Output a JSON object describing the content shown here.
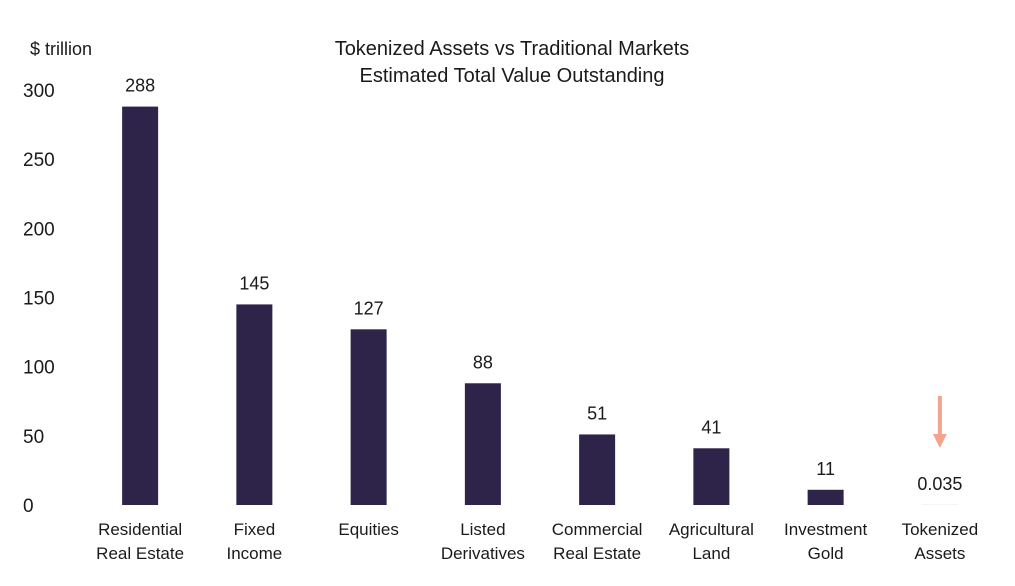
{
  "chart_data": {
    "type": "bar",
    "title": [
      "Tokenized Assets vs Traditional Markets",
      "Estimated Total Value Outstanding"
    ],
    "ylabel": "$ trillion",
    "xlabel": "",
    "ylim": [
      0,
      300
    ],
    "yticks": [
      "0",
      "50",
      "100",
      "150",
      "200",
      "250",
      "300"
    ],
    "grid": false,
    "categories": [
      [
        "Residential",
        "Real Estate"
      ],
      [
        "Fixed",
        "Income"
      ],
      [
        "Equities"
      ],
      [
        "Listed",
        "Derivatives"
      ],
      [
        "Commercial",
        "Real Estate"
      ],
      [
        "Agricultural",
        "Land"
      ],
      [
        "Investment",
        "Gold"
      ],
      [
        "Tokenized",
        "Assets"
      ]
    ],
    "values": [
      288,
      145,
      127,
      88,
      51,
      41,
      11,
      0.035
    ],
    "data_labels": [
      "288",
      "145",
      "127",
      "88",
      "51",
      "41",
      "11",
      "0.035"
    ],
    "bar_color": "#2e2449",
    "annotation": {
      "type": "arrow-down",
      "target_category": "Tokenized Assets",
      "color": "#f4a38c"
    }
  }
}
